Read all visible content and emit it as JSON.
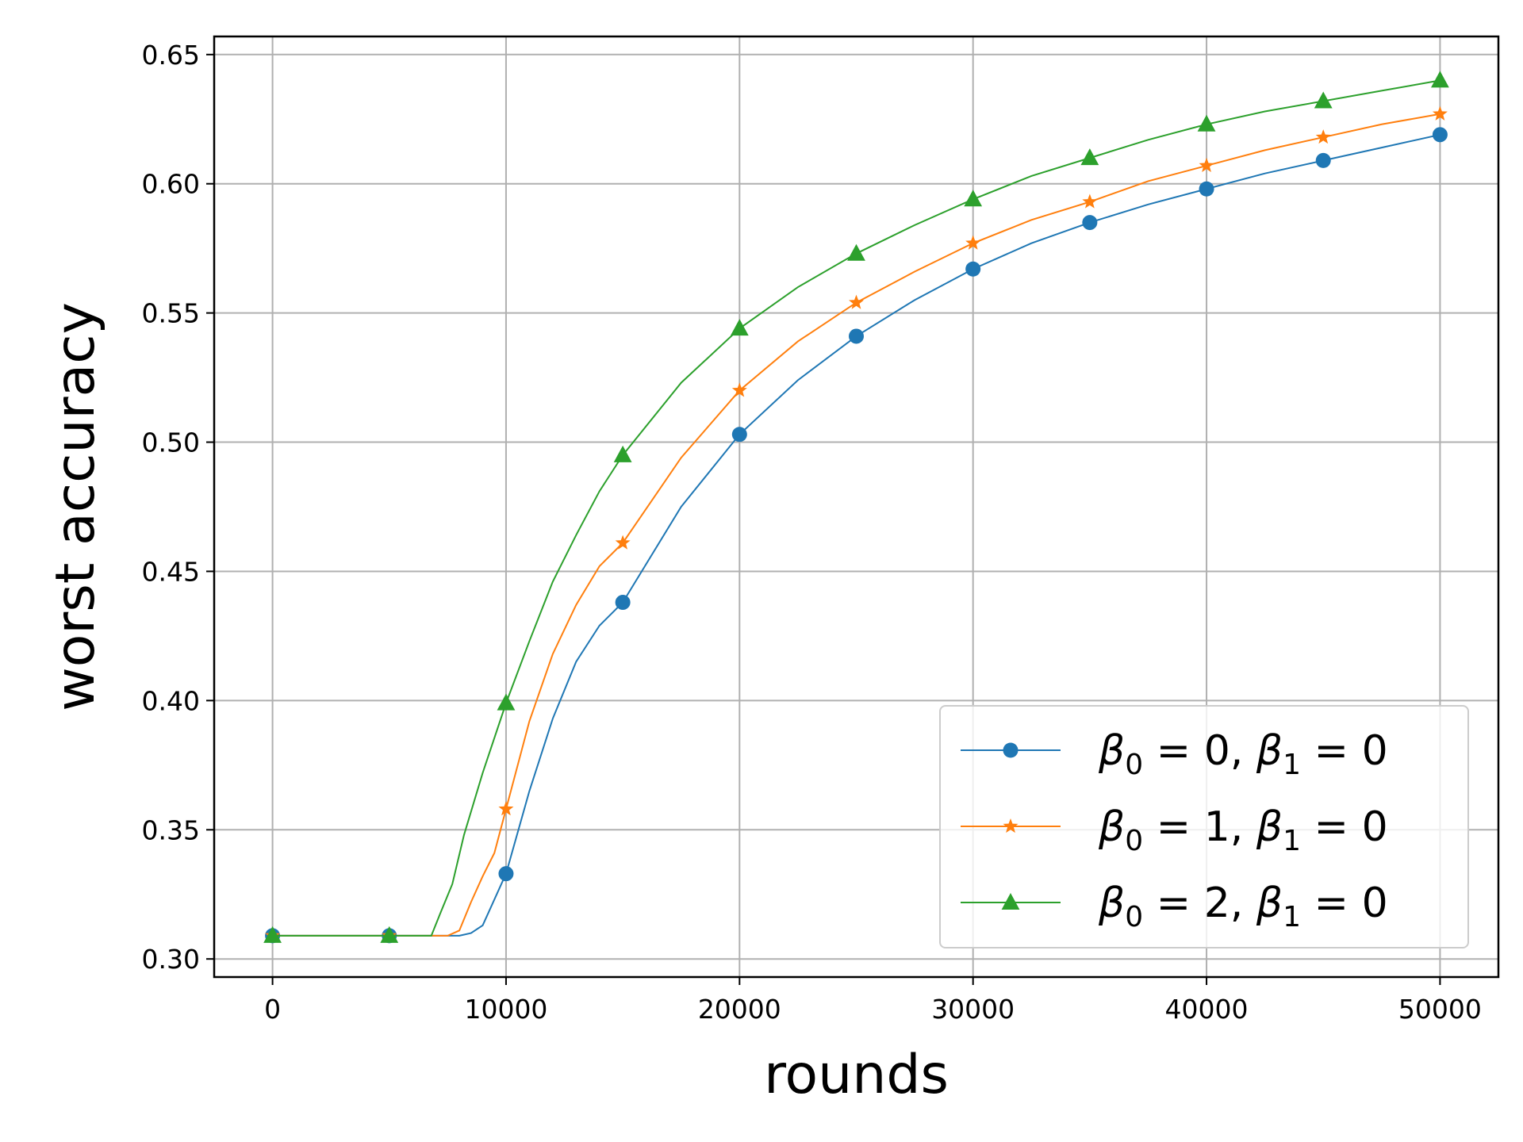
{
  "chart_data": {
    "type": "line",
    "xlabel": "rounds",
    "ylabel": "worst accuracy",
    "xlim": [
      -2500,
      52500
    ],
    "ylim": [
      0.293,
      0.657
    ],
    "xticks": [
      0,
      10000,
      20000,
      30000,
      40000,
      50000
    ],
    "xtick_labels": [
      "0",
      "10000",
      "20000",
      "30000",
      "40000",
      "50000"
    ],
    "yticks": [
      0.3,
      0.35,
      0.4,
      0.45,
      0.5,
      0.55,
      0.6,
      0.65
    ],
    "ytick_labels": [
      "0.30",
      "0.35",
      "0.40",
      "0.45",
      "0.50",
      "0.55",
      "0.60",
      "0.65"
    ],
    "grid": true,
    "legend_position": "lower-right",
    "series": [
      {
        "name": "β0 = 0, β1 = 0",
        "legend_parts": {
          "sym": "β",
          "sub0": "0",
          "mid": " = 0, ",
          "sub1": "1",
          "end": " = 0"
        },
        "color": "#1f77b4",
        "marker": "circle",
        "line_x": [
          0,
          5000,
          8000,
          8500,
          9000,
          10000,
          11000,
          12000,
          13000,
          14000,
          15000,
          17500,
          20000,
          22500,
          25000,
          27500,
          30000,
          32500,
          35000,
          37500,
          40000,
          42500,
          45000,
          47500,
          50000
        ],
        "line_y": [
          0.309,
          0.309,
          0.309,
          0.31,
          0.313,
          0.333,
          0.365,
          0.393,
          0.415,
          0.429,
          0.438,
          0.475,
          0.503,
          0.524,
          0.541,
          0.555,
          0.567,
          0.577,
          0.585,
          0.592,
          0.598,
          0.604,
          0.609,
          0.614,
          0.619
        ],
        "marker_x": [
          0,
          5000,
          10000,
          15000,
          20000,
          25000,
          30000,
          35000,
          40000,
          45000,
          50000
        ],
        "marker_y": [
          0.309,
          0.309,
          0.333,
          0.438,
          0.503,
          0.541,
          0.567,
          0.585,
          0.598,
          0.609,
          0.619
        ]
      },
      {
        "name": "β0 = 1, β1 = 0",
        "legend_parts": {
          "sym": "β",
          "sub0": "0",
          "mid": " = 1, ",
          "sub1": "1",
          "end": " = 0"
        },
        "color": "#ff7f0e",
        "marker": "star",
        "line_x": [
          0,
          5000,
          7500,
          8000,
          8500,
          9000,
          9500,
          10000,
          11000,
          12000,
          13000,
          14000,
          15000,
          17500,
          20000,
          22500,
          25000,
          27500,
          30000,
          32500,
          35000,
          37500,
          40000,
          42500,
          45000,
          47500,
          50000
        ],
        "line_y": [
          0.309,
          0.309,
          0.309,
          0.311,
          0.322,
          0.332,
          0.341,
          0.358,
          0.392,
          0.418,
          0.437,
          0.452,
          0.461,
          0.494,
          0.52,
          0.539,
          0.554,
          0.566,
          0.577,
          0.586,
          0.593,
          0.601,
          0.607,
          0.613,
          0.618,
          0.623,
          0.627
        ]
      },
      {
        "name": "β0 = 2, β1 = 0",
        "legend_parts": {
          "sym": "β",
          "sub0": "0",
          "mid": " = 2, ",
          "sub1": "1",
          "end": " = 0"
        },
        "color": "#2ca02c",
        "marker": "triangle",
        "line_x": [
          0,
          5000,
          6800,
          7200,
          7700,
          8200,
          9000,
          10000,
          11000,
          12000,
          13000,
          14000,
          15000,
          17500,
          20000,
          22500,
          25000,
          27500,
          30000,
          32500,
          35000,
          37500,
          40000,
          42500,
          45000,
          47500,
          50000
        ],
        "line_y": [
          0.309,
          0.309,
          0.309,
          0.318,
          0.329,
          0.348,
          0.372,
          0.399,
          0.423,
          0.446,
          0.464,
          0.481,
          0.495,
          0.523,
          0.544,
          0.56,
          0.573,
          0.584,
          0.594,
          0.603,
          0.61,
          0.617,
          0.623,
          0.628,
          0.632,
          0.636,
          0.64
        ]
      }
    ]
  }
}
